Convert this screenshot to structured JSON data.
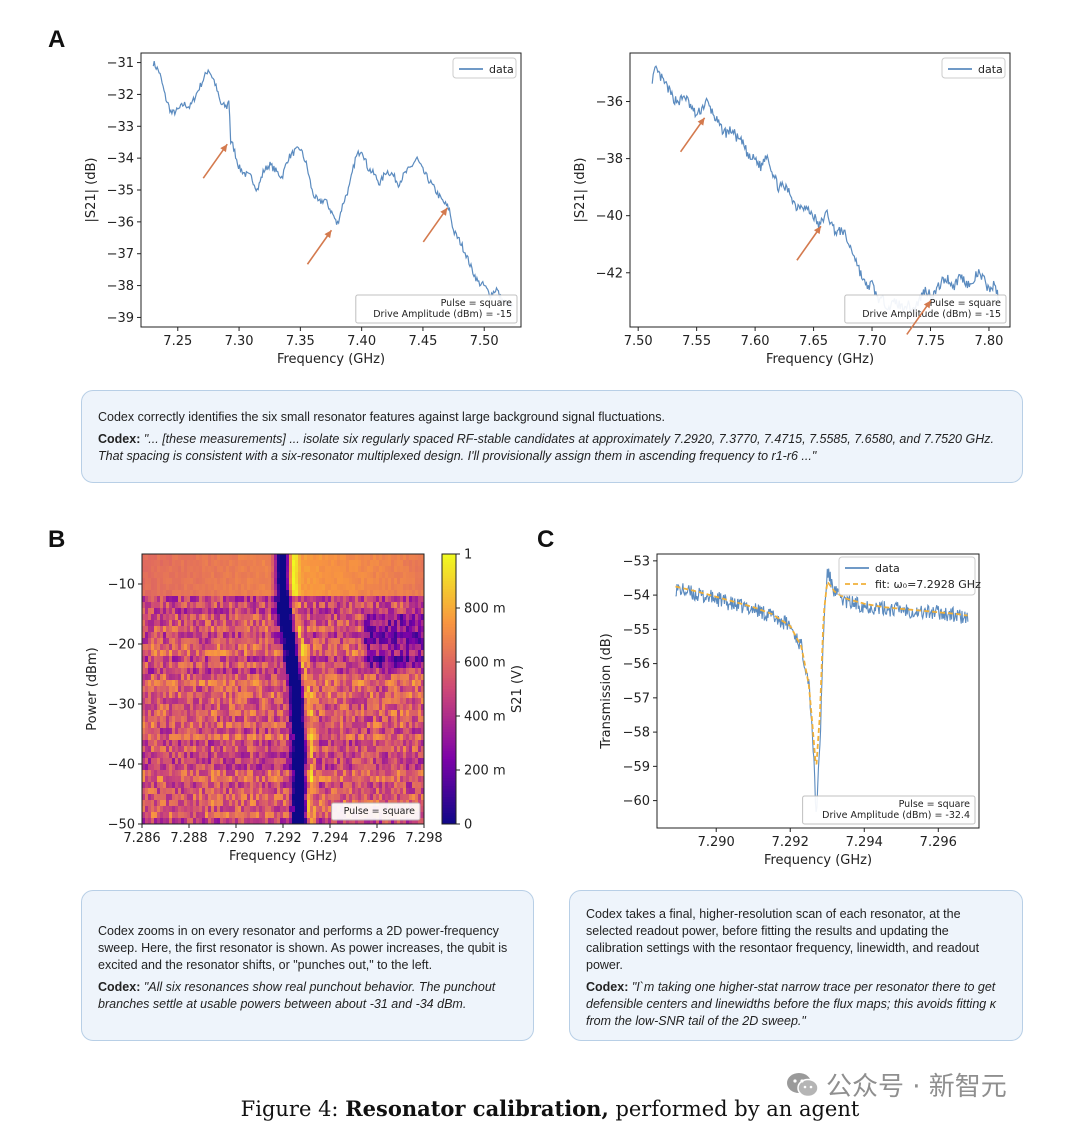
{
  "labels": {
    "a": "A",
    "b": "B",
    "c": "C"
  },
  "colors": {
    "trace": "#5b8bbf",
    "arrow": "#d47a4e",
    "fit": "#f0b03a",
    "box_bg": "#eef4fb",
    "box_border": "#b8cfe6"
  },
  "chart_data": [
    {
      "id": "A-left",
      "type": "line",
      "xlabel": "Frequency (GHz)",
      "ylabel": "|S21| (dB)",
      "xlim": [
        7.22,
        7.53
      ],
      "ylim": [
        -39.3,
        -30.7
      ],
      "xticks": [
        7.25,
        7.3,
        7.35,
        7.4,
        7.45,
        7.5
      ],
      "xtick_labels": [
        "7.25",
        "7.30",
        "7.35",
        "7.40",
        "7.45",
        "7.50"
      ],
      "yticks": [
        -31,
        -32,
        -33,
        -34,
        -35,
        -36,
        -37,
        -38,
        -39
      ],
      "ytick_labels": [
        "−31",
        "−32",
        "−33",
        "−34",
        "−35",
        "−36",
        "−37",
        "−38",
        "−39"
      ],
      "legend": "data",
      "legend_position": "top-right",
      "annotation_lines": [
        "Pulse = square",
        "Drive Amplitude (dBm) = -15"
      ],
      "series": [
        {
          "name": "data",
          "x": [
            7.23,
            7.235,
            7.24,
            7.245,
            7.25,
            7.255,
            7.26,
            7.265,
            7.27,
            7.275,
            7.28,
            7.285,
            7.29,
            7.292,
            7.293,
            7.295,
            7.3,
            7.305,
            7.31,
            7.315,
            7.32,
            7.325,
            7.33,
            7.335,
            7.34,
            7.345,
            7.35,
            7.355,
            7.36,
            7.365,
            7.37,
            7.377,
            7.38,
            7.385,
            7.39,
            7.395,
            7.4,
            7.405,
            7.41,
            7.415,
            7.42,
            7.425,
            7.43,
            7.435,
            7.44,
            7.445,
            7.45,
            7.455,
            7.46,
            7.465,
            7.4715,
            7.475,
            7.48,
            7.485,
            7.49,
            7.495,
            7.5,
            7.505,
            7.51,
            7.515,
            7.52,
            7.524
          ],
          "y": [
            -31.0,
            -31.3,
            -32.1,
            -32.6,
            -32.5,
            -32.3,
            -32.4,
            -32.0,
            -31.6,
            -31.2,
            -31.6,
            -32.3,
            -32.4,
            -32.1,
            -33.5,
            -33.6,
            -34.3,
            -34.5,
            -34.6,
            -35.0,
            -34.4,
            -34.2,
            -34.4,
            -34.6,
            -34.0,
            -33.8,
            -33.7,
            -34.2,
            -35.1,
            -35.4,
            -35.3,
            -35.8,
            -36.1,
            -35.4,
            -34.9,
            -34.0,
            -33.7,
            -34.3,
            -34.5,
            -34.8,
            -34.4,
            -34.5,
            -34.8,
            -34.5,
            -34.3,
            -34.0,
            -34.4,
            -34.7,
            -35.0,
            -35.3,
            -35.6,
            -36.3,
            -36.6,
            -37.0,
            -37.5,
            -37.9,
            -38.0,
            -38.3,
            -38.1,
            -38.5,
            -38.6,
            -38.7
          ]
        }
      ]
    },
    {
      "id": "A-right",
      "type": "line",
      "xlabel": "Frequency (GHz)",
      "ylabel": "|S21| (dB)",
      "xlim": [
        7.493,
        7.818
      ],
      "ylim": [
        -43.9,
        -34.3
      ],
      "xticks": [
        7.5,
        7.55,
        7.6,
        7.65,
        7.7,
        7.75,
        7.8
      ],
      "xtick_labels": [
        "7.50",
        "7.55",
        "7.60",
        "7.65",
        "7.70",
        "7.75",
        "7.80"
      ],
      "yticks": [
        -36,
        -38,
        -40,
        -42
      ],
      "ytick_labels": [
        "−36",
        "−38",
        "−40",
        "−42"
      ],
      "legend": "data",
      "legend_position": "top-right",
      "annotation_lines": [
        "Pulse = square",
        "Drive Amplitude (dBm) = -15"
      ],
      "series": [
        {
          "name": "data",
          "x": [
            7.512,
            7.515,
            7.52,
            7.525,
            7.53,
            7.535,
            7.54,
            7.545,
            7.55,
            7.5585,
            7.565,
            7.57,
            7.575,
            7.58,
            7.585,
            7.59,
            7.595,
            7.6,
            7.605,
            7.61,
            7.615,
            7.62,
            7.625,
            7.63,
            7.635,
            7.64,
            7.645,
            7.65,
            7.655,
            7.658,
            7.662,
            7.665,
            7.67,
            7.675,
            7.68,
            7.685,
            7.69,
            7.695,
            7.7,
            7.705,
            7.71,
            7.715,
            7.72,
            7.725,
            7.73,
            7.735,
            7.74,
            7.745,
            7.752,
            7.76,
            7.765,
            7.77,
            7.775,
            7.78,
            7.785,
            7.79,
            7.795,
            7.8,
            7.805,
            7.808
          ],
          "y": [
            -35.2,
            -34.9,
            -35.2,
            -35.5,
            -35.9,
            -36.0,
            -35.8,
            -36.2,
            -36.5,
            -36.0,
            -36.5,
            -36.9,
            -37.1,
            -37.0,
            -37.3,
            -37.5,
            -38.0,
            -38.0,
            -38.3,
            -37.8,
            -38.5,
            -39.0,
            -39.0,
            -39.2,
            -39.7,
            -39.6,
            -39.8,
            -40.0,
            -40.4,
            -40.1,
            -39.9,
            -40.3,
            -40.6,
            -40.5,
            -41.0,
            -41.4,
            -42.0,
            -42.5,
            -42.4,
            -42.9,
            -43.0,
            -43.2,
            -43.0,
            -43.2,
            -43.1,
            -43.3,
            -43.0,
            -42.6,
            -42.8,
            -42.3,
            -42.2,
            -42.5,
            -42.1,
            -42.3,
            -42.5,
            -42.0,
            -42.2,
            -42.6,
            -42.4,
            -42.9
          ]
        }
      ]
    },
    {
      "id": "B",
      "type": "heatmap",
      "xlabel": "Frequency (GHz)",
      "ylabel": "Power (dBm)",
      "xlim": [
        7.286,
        7.298
      ],
      "ylim": [
        -50,
        -5
      ],
      "xticks": [
        7.286,
        7.288,
        7.29,
        7.292,
        7.294,
        7.296,
        7.298
      ],
      "xtick_labels": [
        "7.286",
        "7.288",
        "7.290",
        "7.292",
        "7.294",
        "7.296",
        "7.298"
      ],
      "yticks": [
        -10,
        -20,
        -30,
        -40,
        -50
      ],
      "ytick_labels": [
        "−10",
        "−20",
        "−30",
        "−40",
        "−50"
      ],
      "colorbar_label": "S21 (V)",
      "colorbar_ticks": [
        0,
        0.2,
        0.4,
        0.6,
        0.8,
        1
      ],
      "colorbar_tick_labels": [
        "0",
        "200 m",
        "400 m",
        "600 m",
        "800 m",
        "1"
      ],
      "annotation_lines": [
        "Pulse = square"
      ],
      "resonance_x": [
        7.292,
        7.292,
        7.2921,
        7.2923,
        7.2925,
        7.2926,
        7.2927,
        7.2927,
        7.2927,
        7.2927
      ],
      "resonance_power": [
        -5,
        -10,
        -15,
        -20,
        -25,
        -30,
        -35,
        -40,
        -45,
        -50
      ]
    },
    {
      "id": "C",
      "type": "line",
      "xlabel": "Frequency (GHz)",
      "ylabel": "Transmission (dB)",
      "xlim": [
        7.2884,
        7.2971
      ],
      "ylim": [
        -60.8,
        -52.8
      ],
      "xticks": [
        7.29,
        7.292,
        7.294,
        7.296
      ],
      "xtick_labels": [
        "7.290",
        "7.292",
        "7.294",
        "7.296"
      ],
      "yticks": [
        -53,
        -54,
        -55,
        -56,
        -57,
        -58,
        -59,
        -60
      ],
      "ytick_labels": [
        "−53",
        "−54",
        "−55",
        "−56",
        "−57",
        "−58",
        "−59",
        "−60"
      ],
      "legend_position": "top-right",
      "annotation_lines": [
        "Pulse = square",
        "Drive Amplitude (dBm) = -32.4"
      ],
      "series": [
        {
          "name": "data",
          "x": [
            7.2889,
            7.2895,
            7.29,
            7.2905,
            7.291,
            7.2915,
            7.292,
            7.2923,
            7.2925,
            7.2926,
            7.2927,
            7.2928,
            7.2929,
            7.293,
            7.2932,
            7.2935,
            7.294,
            7.2945,
            7.295,
            7.2955,
            7.296,
            7.2965,
            7.2968
          ],
          "y": [
            -53.8,
            -54.0,
            -54.1,
            -54.3,
            -54.4,
            -54.6,
            -54.9,
            -55.5,
            -56.5,
            -58.0,
            -60.4,
            -58.5,
            -55.0,
            -53.3,
            -53.9,
            -54.2,
            -54.3,
            -54.4,
            -54.4,
            -54.5,
            -54.5,
            -54.6,
            -54.7
          ]
        },
        {
          "name": "fit: ω₀=7.2928 GHz",
          "x": [
            7.2889,
            7.2895,
            7.29,
            7.2905,
            7.291,
            7.2915,
            7.292,
            7.2923,
            7.2925,
            7.2926,
            7.2927,
            7.2928,
            7.2929,
            7.293,
            7.2932,
            7.2935,
            7.294,
            7.2945,
            7.295,
            7.2955,
            7.296,
            7.2965,
            7.2968
          ],
          "y": [
            -53.75,
            -53.9,
            -54.05,
            -54.2,
            -54.35,
            -54.55,
            -54.9,
            -55.5,
            -56.6,
            -57.8,
            -59.1,
            -57.5,
            -54.6,
            -53.6,
            -53.9,
            -54.1,
            -54.25,
            -54.35,
            -54.4,
            -54.45,
            -54.5,
            -54.55,
            -54.6
          ]
        }
      ]
    }
  ],
  "commentary": {
    "a": {
      "summary": "Codex correctly identifies the six small resonator features against large background signal fluctuations.",
      "speaker": "Codex:",
      "quote": "\"... [these measurements] ... isolate six regularly spaced RF-stable candidates at approximately 7.2920, 7.3770, 7.4715, 7.5585, 7.6580, and 7.7520 GHz. That spacing is consistent with a six-resonator multiplexed design. I'll provisionally assign them in ascending frequency to r1-r6 ...\""
    },
    "b": {
      "summary": "Codex zooms in on every resonator and performs a 2D power-frequency sweep. Here, the first resonator is shown. As power increases, the qubit is excited and the resonator shifts, or \"punches out,\" to the left.",
      "speaker": "Codex:",
      "quote": "\"All six resonances show real punchout behavior. The punchout branches settle at usable powers between about -31 and -34 dBm."
    },
    "c": {
      "summary": "Codex takes a final, higher-resolution scan of each resonator, at the selected readout power, before fitting the results and updating the calibration settings with the resontaor frequency, linewidth, and readout power.",
      "speaker": "Codex:",
      "quote": "\"I`m taking one higher-stat narrow trace per resonator there to get defensible centers and linewidths before the flux maps; this avoids fitting κ from the low-SNR tail of the 2D sweep.\""
    }
  },
  "caption": {
    "prefix": "Figure 4: ",
    "bold": "Resonator calibration,",
    "rest": " performed by an agent"
  },
  "watermark": {
    "icon": "wechat-icon",
    "text": "公众号 · 新智元"
  }
}
